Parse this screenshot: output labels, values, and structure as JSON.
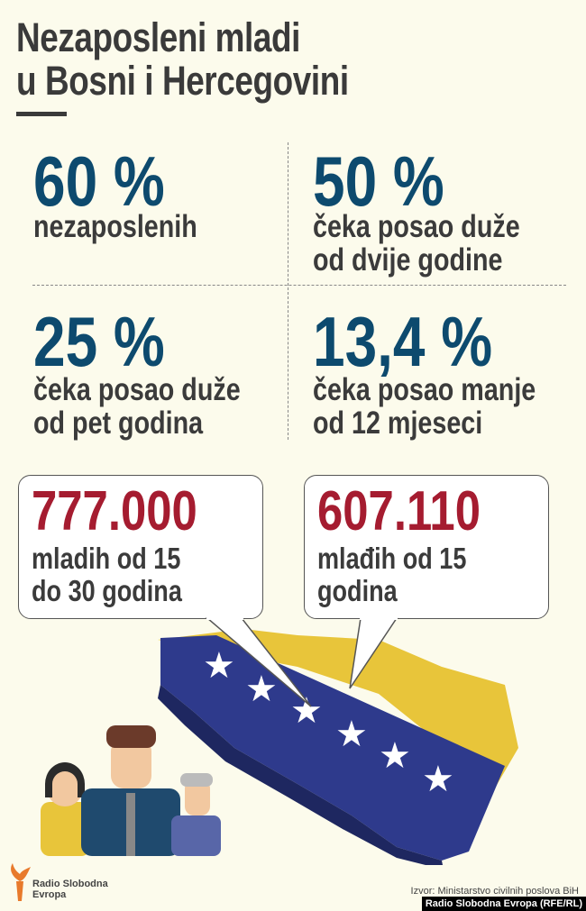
{
  "title": {
    "line1": "Nezaposleni mladi",
    "line2": "u Bosni i Hercegovini"
  },
  "stats": [
    {
      "value": "60 %",
      "line1": "nezaposlenih",
      "line2": ""
    },
    {
      "value": "50 %",
      "line1": "čeka posao duže",
      "line2": "od dvije godine"
    },
    {
      "value": "25 %",
      "line1": "čeka posao duže",
      "line2": "od pet godina"
    },
    {
      "value": "13,4 %",
      "line1": "čeka posao manje",
      "line2": "od 12 mjeseci"
    }
  ],
  "bubbles": [
    {
      "value": "777.000",
      "line1": "mladih od 15",
      "line2": "do 30 godina"
    },
    {
      "value": "607.110",
      "line1": "mlađih od 15",
      "line2": "godina"
    }
  ],
  "colors": {
    "background": "#fcfbec",
    "blue": "#0d4a6e",
    "red": "#a51c30",
    "flag_blue": "#2e3a8c",
    "flag_yellow": "#e8c53a"
  },
  "logo": {
    "line1": "Radio Slobodna",
    "line2": "Evropa",
    "icon": "torch-icon"
  },
  "source": "Izvor: Ministarstvo civilnih poslova BiH",
  "credit": "Radio Slobodna Evropa (RFE/RL)"
}
